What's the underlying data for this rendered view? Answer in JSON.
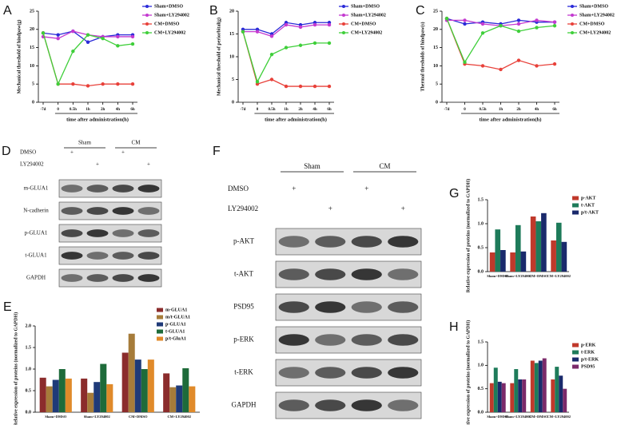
{
  "chart_data": [
    {
      "panel": "A",
      "type": "line",
      "ylabel": "Mechanical threshold of hindpaw(g)",
      "xlabel": "time after administration(h)",
      "categories": [
        "-7d",
        "0",
        "0.5h",
        "1h",
        "2h",
        "4h",
        "6h"
      ],
      "ylim": [
        0,
        25
      ],
      "yticks": [
        0,
        5,
        10,
        15,
        20,
        25
      ],
      "series": [
        {
          "name": "Sham+DMSO",
          "color": "#2a2ad8",
          "values": [
            19,
            18.5,
            19.5,
            16.5,
            18,
            18.5,
            18.5
          ]
        },
        {
          "name": "Sham+LY294002",
          "color": "#c43ad0",
          "values": [
            18,
            17.5,
            19.5,
            18.5,
            18,
            18,
            18
          ]
        },
        {
          "name": "CM+DMSO",
          "color": "#e8413a",
          "values": [
            19,
            5,
            5,
            4.5,
            5,
            5,
            5
          ]
        },
        {
          "name": "CM+LY294002",
          "color": "#3fcf3a",
          "values": [
            19,
            5,
            14,
            18.5,
            17.5,
            15.5,
            16
          ]
        }
      ]
    },
    {
      "panel": "B",
      "type": "line",
      "ylabel": "Mechanical threshold of periorbital(g)",
      "xlabel": "time after administration(h)",
      "categories": [
        "-7d",
        "0",
        "0.5h",
        "1h",
        "2h",
        "4h",
        "6h"
      ],
      "ylim": [
        0,
        20
      ],
      "yticks": [
        0,
        5,
        10,
        15,
        20
      ],
      "series": [
        {
          "name": "Sham+DMSO",
          "color": "#2a2ad8",
          "values": [
            16,
            16,
            15,
            17.5,
            17,
            17.5,
            17.5
          ]
        },
        {
          "name": "Sham+LY294002",
          "color": "#c43ad0",
          "values": [
            15.5,
            15.5,
            14.5,
            17,
            16.5,
            17,
            17
          ]
        },
        {
          "name": "CM+DMSO",
          "color": "#e8413a",
          "values": [
            15.5,
            4,
            5,
            3.5,
            3.5,
            3.5,
            3.5
          ]
        },
        {
          "name": "CM+LY294002",
          "color": "#3fcf3a",
          "values": [
            15.5,
            4.5,
            10.5,
            12,
            12.5,
            13,
            13
          ]
        }
      ]
    },
    {
      "panel": "C",
      "type": "line",
      "ylabel": "Thermal thresholds of hindpaw(s)",
      "xlabel": "time after administration(h)",
      "categories": [
        "-7d",
        "0",
        "0.5h",
        "1h",
        "2h",
        "4h",
        "6h"
      ],
      "ylim": [
        0,
        25
      ],
      "yticks": [
        0,
        5,
        10,
        15,
        20,
        25
      ],
      "series": [
        {
          "name": "Sham+DMSO",
          "color": "#2a2ad8",
          "values": [
            23,
            21.5,
            22,
            21.5,
            22.5,
            22,
            22
          ]
        },
        {
          "name": "Sham+LY294002",
          "color": "#c43ad0",
          "values": [
            22.5,
            22.5,
            21.5,
            21,
            21.5,
            22.5,
            22
          ]
        },
        {
          "name": "CM+DMSO",
          "color": "#e8413a",
          "values": [
            23,
            10.5,
            10,
            9,
            11.5,
            10,
            10.5
          ]
        },
        {
          "name": "CM+LY294002",
          "color": "#3fcf3a",
          "values": [
            23,
            11,
            19,
            21,
            19.5,
            20.5,
            21
          ]
        }
      ]
    },
    {
      "panel": "E",
      "type": "bar",
      "ylabel": "Relative expression of proteins (normalized to GAPDH)",
      "categories": [
        "Sham+DMSO",
        "Sham+LY294002",
        "CM+DMSO",
        "CM+LY294002"
      ],
      "ylim": [
        0,
        2
      ],
      "yticks": [
        {
          "value": 0,
          "label": "0.0"
        },
        0.5,
        {
          "value": 1,
          "label": "1.0"
        },
        1.5,
        {
          "value": 2,
          "label": "2.0"
        }
      ],
      "series": [
        {
          "name": "m-GLUA1",
          "color": "#8b2c2c",
          "values": [
            0.8,
            0.78,
            1.38,
            0.9
          ]
        },
        {
          "name": "m/t-GLUA1",
          "color": "#a67c3a",
          "values": [
            0.6,
            0.45,
            1.82,
            0.58
          ]
        },
        {
          "name": "p-GLUA1",
          "color": "#1f3a78",
          "values": [
            0.75,
            0.7,
            1.22,
            0.62
          ]
        },
        {
          "name": "t-GLUA1",
          "color": "#1e6b3a",
          "values": [
            1.0,
            1.12,
            1.0,
            1.02
          ]
        },
        {
          "name": "p/t-GluA1",
          "color": "#e08a2a",
          "values": [
            0.78,
            0.65,
            1.22,
            0.6
          ]
        }
      ]
    },
    {
      "panel": "G",
      "type": "bar",
      "ylabel": "Relative expression of proteins (normalized to GAPDH)",
      "categories": [
        "Sham+DMSO",
        "Sham+LY294002",
        "CM+DMSO",
        "CM+LY294002"
      ],
      "ylim": [
        0,
        1.5
      ],
      "yticks": [
        {
          "value": 0,
          "label": "0.0"
        },
        0.5,
        {
          "value": 1,
          "label": "1.0"
        },
        1.5
      ],
      "series": [
        {
          "name": "p-AKT",
          "color": "#c0392b",
          "values": [
            0.4,
            0.4,
            1.15,
            0.65
          ]
        },
        {
          "name": "t-AKT",
          "color": "#1e7b5a",
          "values": [
            0.88,
            0.97,
            1.05,
            1.02
          ]
        },
        {
          "name": "p/t-AKT",
          "color": "#1a2a6c",
          "values": [
            0.45,
            0.42,
            1.22,
            0.62
          ]
        }
      ]
    },
    {
      "panel": "H",
      "type": "bar",
      "ylabel": "Relative expression of proteins (normalized to GAPDH)",
      "categories": [
        "Sham+DMSO",
        "Sham+LY294002",
        "CM+DMSO",
        "CM+LY294002"
      ],
      "ylim": [
        0,
        1.5
      ],
      "yticks": [
        {
          "value": 0,
          "label": "0.0"
        },
        0.5,
        {
          "value": 1,
          "label": "1.0"
        },
        1.5
      ],
      "series": [
        {
          "name": "p-ERK",
          "color": "#c0392b",
          "values": [
            0.62,
            0.62,
            1.1,
            0.7
          ]
        },
        {
          "name": "t-ERK",
          "color": "#1e7b5a",
          "values": [
            0.95,
            0.92,
            1.05,
            0.97
          ]
        },
        {
          "name": "p/t-ERK",
          "color": "#1a2a6c",
          "values": [
            0.65,
            0.7,
            1.1,
            0.78
          ]
        },
        {
          "name": "PSD95",
          "color": "#7b2a6a",
          "values": [
            0.62,
            0.7,
            1.15,
            0.5
          ]
        }
      ]
    }
  ],
  "blots": [
    {
      "panel": "D",
      "groups": [
        "Sham",
        "CM"
      ],
      "treatments": [
        {
          "label": "DMSO",
          "sign": "+"
        },
        {
          "label": "LY294002",
          "sign": "+"
        }
      ],
      "bands": [
        "m-GLUA1",
        "N-cadherin",
        "p-GLUA1",
        "t-GLUA1",
        "GAPDH"
      ]
    },
    {
      "panel": "F",
      "groups": [
        "Sham",
        "CM"
      ],
      "treatments": [
        {
          "label": "DMSO",
          "sign": "+"
        },
        {
          "label": "LY294002",
          "sign": "+"
        }
      ],
      "bands": [
        "p-AKT",
        "t-AKT",
        "PSD95",
        "p-ERK",
        "t-ERK",
        "GAPDH"
      ]
    }
  ]
}
